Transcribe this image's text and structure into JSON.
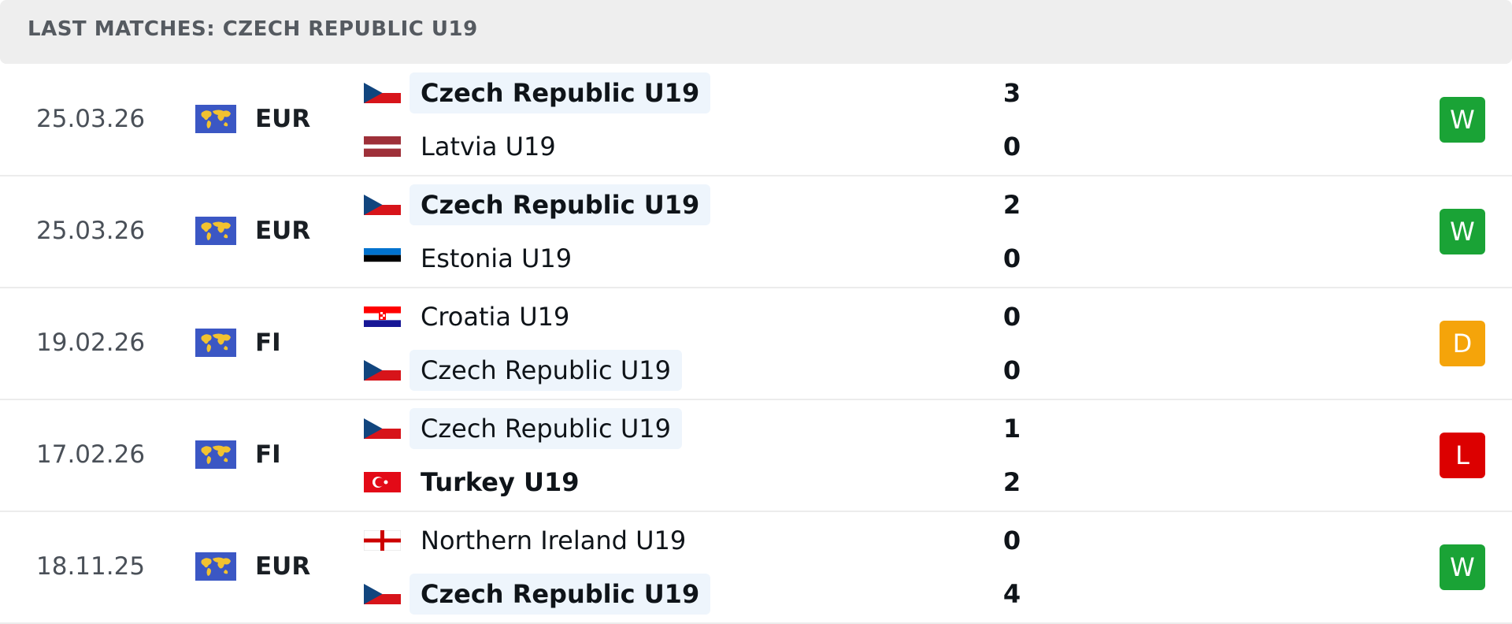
{
  "header": {
    "title": "LAST MATCHES: CZECH REPUBLIC U19"
  },
  "matches": [
    {
      "date": "25.03.26",
      "competition": "EUR",
      "home": {
        "name": "Czech Republic U19",
        "score": 3
      },
      "away": {
        "name": "Latvia U19",
        "score": 0
      },
      "result": "W"
    },
    {
      "date": "25.03.26",
      "competition": "EUR",
      "home": {
        "name": "Czech Republic U19",
        "score": 2
      },
      "away": {
        "name": "Estonia U19",
        "score": 0
      },
      "result": "W"
    },
    {
      "date": "19.02.26",
      "competition": "FI",
      "home": {
        "name": "Croatia U19",
        "score": 0
      },
      "away": {
        "name": "Czech Republic U19",
        "score": 0
      },
      "result": "D"
    },
    {
      "date": "17.02.26",
      "competition": "FI",
      "home": {
        "name": "Czech Republic U19",
        "score": 1
      },
      "away": {
        "name": "Turkey U19",
        "score": 2
      },
      "result": "L"
    },
    {
      "date": "18.11.25",
      "competition": "EUR",
      "home": {
        "name": "Northern Ireland U19",
        "score": 0
      },
      "away": {
        "name": "Czech Republic U19",
        "score": 4
      },
      "result": "W"
    }
  ]
}
